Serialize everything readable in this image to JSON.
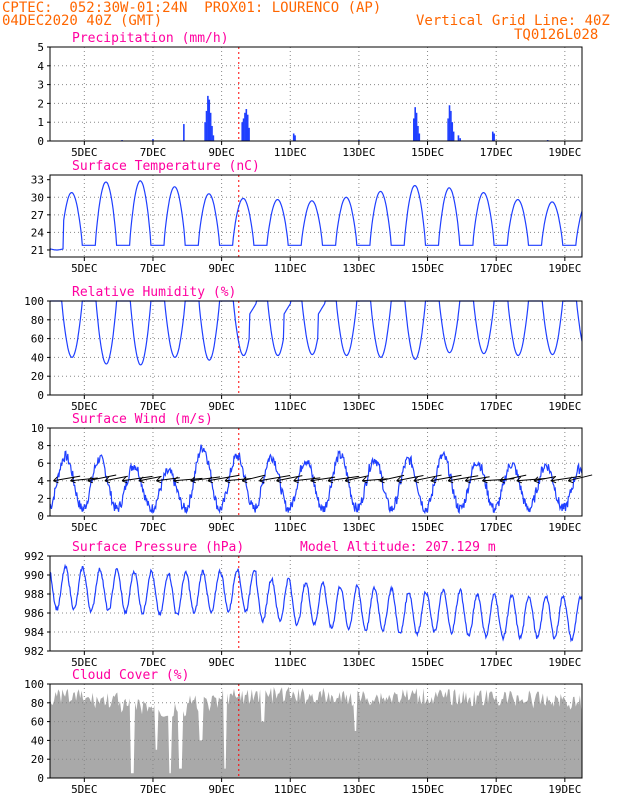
{
  "header": {
    "line1": "CPTEC:  052:30W-01:24N  PROX01: LOURENCO (AP)",
    "line2_left": "04DEC2020 40Z (GMT)",
    "line2_right": "Vertical Grid Line: 40Z",
    "line3_right": "TQ0126L028",
    "altitude": "Model Altitude: 207.129 m"
  },
  "colors": {
    "header": "#ff6600",
    "title": "#ff00a0",
    "series": "#1f3fff",
    "cloud": "#a9a9a9",
    "vline": "#ff0000"
  },
  "chart_data": [
    {
      "id": "precip",
      "type": "bar",
      "title": "Precipitation (mm/h)",
      "x_tick_labels": [
        "5DEC",
        "7DEC",
        "9DEC",
        "11DEC",
        "13DEC",
        "15DEC",
        "17DEC",
        "19DEC"
      ],
      "y_ticks": [
        0,
        1,
        2,
        3,
        4,
        5
      ],
      "ylim": [
        0,
        5
      ],
      "grid": true,
      "values": [
        {
          "x": 2.1,
          "y": 0.05
        },
        {
          "x": 3.0,
          "y": 0.1
        },
        {
          "x": 3.9,
          "y": 0.9
        },
        {
          "x": 4.52,
          "y": 1.0
        },
        {
          "x": 4.56,
          "y": 1.6
        },
        {
          "x": 4.6,
          "y": 2.4
        },
        {
          "x": 4.64,
          "y": 2.2
        },
        {
          "x": 4.68,
          "y": 1.5
        },
        {
          "x": 4.72,
          "y": 0.8
        },
        {
          "x": 4.76,
          "y": 0.3
        },
        {
          "x": 5.6,
          "y": 1.0
        },
        {
          "x": 5.64,
          "y": 1.2
        },
        {
          "x": 5.68,
          "y": 1.5
        },
        {
          "x": 5.72,
          "y": 1.7
        },
        {
          "x": 5.76,
          "y": 1.4
        },
        {
          "x": 5.8,
          "y": 0.7
        },
        {
          "x": 7.1,
          "y": 0.4
        },
        {
          "x": 7.14,
          "y": 0.3
        },
        {
          "x": 10.6,
          "y": 1.2
        },
        {
          "x": 10.64,
          "y": 1.8
        },
        {
          "x": 10.68,
          "y": 1.5
        },
        {
          "x": 10.72,
          "y": 0.8
        },
        {
          "x": 10.76,
          "y": 0.4
        },
        {
          "x": 11.6,
          "y": 1.2
        },
        {
          "x": 11.64,
          "y": 1.9
        },
        {
          "x": 11.68,
          "y": 1.6
        },
        {
          "x": 11.72,
          "y": 1.0
        },
        {
          "x": 11.76,
          "y": 0.5
        },
        {
          "x": 11.9,
          "y": 0.3
        },
        {
          "x": 11.95,
          "y": 0.15
        },
        {
          "x": 12.9,
          "y": 0.5
        },
        {
          "x": 12.94,
          "y": 0.4
        },
        {
          "x": 9.0,
          "y": 0.05
        },
        {
          "x": 14.5,
          "y": 0.05
        }
      ]
    },
    {
      "id": "temp",
      "type": "line",
      "title": "Surface Temperature (nC)",
      "x_tick_labels": [
        "5DEC",
        "7DEC",
        "9DEC",
        "11DEC",
        "13DEC",
        "15DEC",
        "17DEC",
        "19DEC"
      ],
      "y_ticks": [
        21,
        24,
        27,
        30,
        33
      ],
      "ylim": [
        19.8,
        33.8
      ],
      "grid": true,
      "min": 21.0,
      "max": 32.8,
      "phase": 0.58,
      "daily_max": [
        30.8,
        32.6,
        32.8,
        31.8,
        30.6,
        29.8,
        29.6,
        29.4,
        30.0,
        31.0,
        32.0,
        31.6,
        30.8,
        29.6,
        29.2,
        28.8,
        30.0
      ]
    },
    {
      "id": "rh",
      "type": "line",
      "title": "Relative Humidity (%)",
      "x_tick_labels": [
        "5DEC",
        "7DEC",
        "9DEC",
        "11DEC",
        "13DEC",
        "15DEC",
        "17DEC",
        "19DEC"
      ],
      "y_ticks": [
        0,
        20,
        40,
        60,
        80,
        100
      ],
      "ylim": [
        0,
        100
      ],
      "grid": true,
      "daily_min": [
        40,
        33,
        32,
        40,
        37,
        42,
        42,
        43,
        42,
        40,
        38,
        45,
        44,
        42,
        43,
        44,
        45
      ],
      "max": 100
    },
    {
      "id": "wind",
      "type": "line",
      "title": "Surface Wind (m/s)",
      "x_tick_labels": [
        "5DEC",
        "7DEC",
        "9DEC",
        "11DEC",
        "13DEC",
        "15DEC",
        "17DEC",
        "19DEC"
      ],
      "y_ticks": [
        0,
        2,
        4,
        6,
        8,
        10
      ],
      "ylim": [
        0,
        10
      ],
      "grid": true,
      "daily_max": [
        6.8,
        6.5,
        5.8,
        5.0,
        7.8,
        6.8,
        6.8,
        6.4,
        6.9,
        6.5,
        6.4,
        6.8,
        6.2,
        5.9,
        5.8,
        5.4,
        6.0
      ],
      "min": 0.8,
      "direction": "easterly"
    },
    {
      "id": "press",
      "type": "line",
      "title": "Surface Pressure (hPa)",
      "x_tick_labels": [
        "5DEC",
        "7DEC",
        "9DEC",
        "11DEC",
        "13DEC",
        "15DEC",
        "17DEC",
        "19DEC"
      ],
      "y_ticks": [
        982,
        984,
        986,
        988,
        990,
        992
      ],
      "ylim": [
        982,
        992
      ],
      "grid": true,
      "mean": [
        988.6,
        988.4,
        988.2,
        988.0,
        988.2,
        988.4,
        987.4,
        987.0,
        986.6,
        986.4,
        986.0,
        986.2,
        985.8,
        985.6,
        985.6,
        985.4,
        985.4
      ],
      "amp": 2.2
    },
    {
      "id": "cloud",
      "type": "area",
      "title": "Cloud Cover (%)",
      "x_tick_labels": [
        "5DEC",
        "7DEC",
        "9DEC",
        "11DEC",
        "13DEC",
        "15DEC",
        "17DEC",
        "19DEC"
      ],
      "y_ticks": [
        0,
        20,
        40,
        60,
        80,
        100
      ],
      "ylim": [
        0,
        100
      ],
      "grid": true,
      "base": [
        95,
        92,
        85,
        80,
        88,
        95,
        97,
        96,
        94,
        95,
        96,
        95,
        94,
        94,
        92,
        90,
        88
      ],
      "dips": [
        {
          "x": 2.4,
          "y": 5
        },
        {
          "x": 3.1,
          "y": 30
        },
        {
          "x": 3.5,
          "y": 5
        },
        {
          "x": 5.1,
          "y": 10
        },
        {
          "x": 4.4,
          "y": 40
        },
        {
          "x": 6.2,
          "y": 60
        },
        {
          "x": 8.9,
          "y": 50
        },
        {
          "x": 3.8,
          "y": 10
        }
      ]
    }
  ]
}
